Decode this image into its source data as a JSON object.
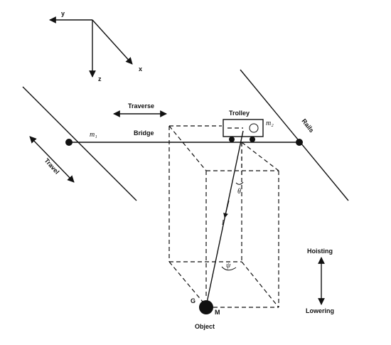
{
  "axes": {
    "x": "x",
    "y": "y",
    "z": "z"
  },
  "labels": {
    "traverse": "Traverse",
    "trolley": "Trolley",
    "m2": "m₂",
    "rails": "Rails",
    "m1": "m₁",
    "bridge": "Bridge",
    "travel": "Travel",
    "theta": "θ",
    "psi": "ψ",
    "l": "l",
    "g": "G",
    "m": "M",
    "object": "Object",
    "hoisting": "Hoisting",
    "lowering": "Lowering"
  },
  "colors": {
    "ink": "#111111",
    "background": "#ffffff"
  }
}
